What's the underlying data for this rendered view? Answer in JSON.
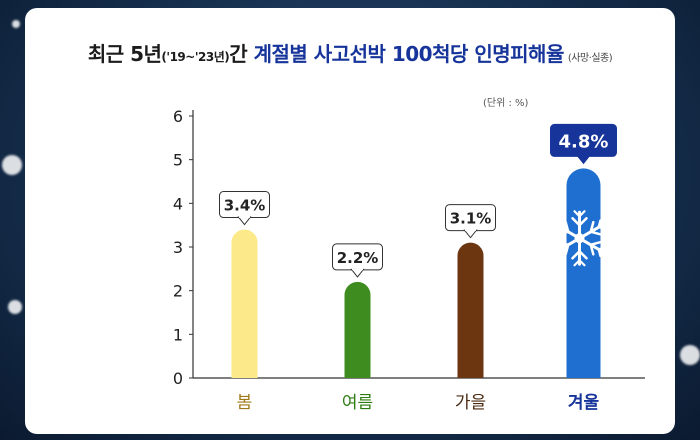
{
  "title": {
    "prefix": "최근 5년",
    "years": "('19~'23년)",
    "mid": "간 ",
    "highlight": "계절별 사고선박 100척당 인명피해율",
    "note": "(사망·실종)"
  },
  "unit_label": "(단위 : %)",
  "chart_data": {
    "type": "bar",
    "categories": [
      "봄",
      "여름",
      "가을",
      "겨울"
    ],
    "values": [
      3.4,
      2.2,
      3.1,
      4.8
    ],
    "value_labels": [
      "3.4%",
      "2.2%",
      "3.1%",
      "4.8%"
    ],
    "yticks": [
      0,
      1,
      2,
      3,
      4,
      5,
      6
    ],
    "ylim": [
      0,
      6
    ],
    "colors": [
      "#fbe98a",
      "#3e8c1f",
      "#6b3610",
      "#1f6fd1"
    ],
    "label_colors": [
      "#a07818",
      "#2e7d12",
      "#4a2a10",
      "#16349a"
    ],
    "highlight_index": 3,
    "highlight_color": "#16349a",
    "grid": false,
    "legend": "none"
  },
  "icons": {
    "winter": "snowflake-icon"
  }
}
